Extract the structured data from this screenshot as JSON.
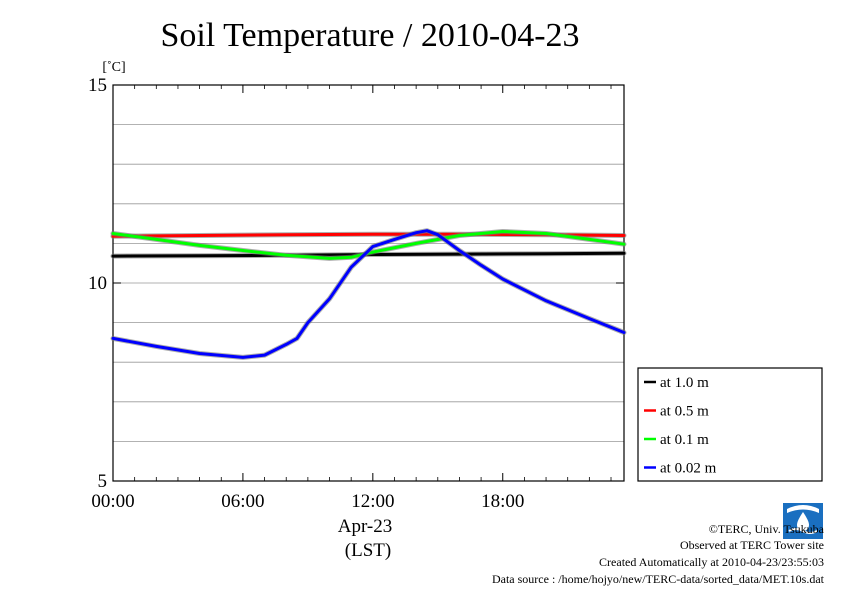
{
  "chart_data": {
    "type": "line",
    "title": "Soil Temperature / 2010-04-23",
    "ylabel": "[˚C]",
    "xlabel_date": "Apr-23",
    "xlabel_tz": "(LST)",
    "xlim": [
      0,
      23.6
    ],
    "ylim": [
      5,
      15
    ],
    "x_ticks": [
      {
        "x": 0,
        "label": "00:00"
      },
      {
        "x": 6,
        "label": "06:00"
      },
      {
        "x": 12,
        "label": "12:00"
      },
      {
        "x": 18,
        "label": "18:00"
      }
    ],
    "y_ticks": [
      {
        "y": 5,
        "label": "5"
      },
      {
        "y": 10,
        "label": "10"
      },
      {
        "y": 15,
        "label": "15"
      }
    ],
    "y_gridlines": [
      6,
      7,
      8,
      9,
      10,
      11,
      12,
      13,
      14
    ],
    "grid": true,
    "legend_position": "lower-right outside",
    "series": [
      {
        "name": "at 1.0 m",
        "color": "#000000",
        "x": [
          0,
          4,
          8,
          12,
          16,
          20,
          23.6
        ],
        "y": [
          10.68,
          10.69,
          10.7,
          10.72,
          10.73,
          10.74,
          10.75
        ]
      },
      {
        "name": "at 0.5 m",
        "color": "#ff0000",
        "x": [
          0,
          4,
          8,
          12,
          16,
          20,
          23.6
        ],
        "y": [
          11.18,
          11.2,
          11.22,
          11.23,
          11.23,
          11.22,
          11.2
        ]
      },
      {
        "name": "at 0.1 m",
        "color": "#00ff00",
        "x": [
          0,
          2,
          4,
          6,
          8,
          10,
          11,
          12,
          14,
          16,
          18,
          20,
          22,
          23.6
        ],
        "y": [
          11.25,
          11.1,
          10.95,
          10.82,
          10.7,
          10.62,
          10.65,
          10.78,
          11.0,
          11.2,
          11.3,
          11.25,
          11.1,
          10.98
        ]
      },
      {
        "name": "at 0.02 m",
        "color": "#0000ff",
        "x": [
          0,
          2,
          4,
          6,
          7,
          8,
          8.5,
          9,
          10,
          11,
          12,
          13,
          14,
          14.5,
          15,
          16,
          17,
          18,
          20,
          22,
          23.6
        ],
        "y": [
          8.6,
          8.4,
          8.22,
          8.12,
          8.18,
          8.45,
          8.6,
          9.0,
          9.6,
          10.4,
          10.92,
          11.1,
          11.27,
          11.32,
          11.22,
          10.82,
          10.45,
          10.1,
          9.55,
          9.1,
          8.75
        ]
      }
    ]
  },
  "footer": {
    "copyright": "©TERC, Univ. Tsukuba",
    "observed": "Observed at TERC Tower site",
    "created": "Created Automatically at 2010-04-23/23:55:03",
    "source": "Data source : /home/hojyo/new/TERC-data/sorted_data/MET.10s.dat"
  },
  "logo": {
    "text": "TERC",
    "color": "#1a6fc0"
  }
}
